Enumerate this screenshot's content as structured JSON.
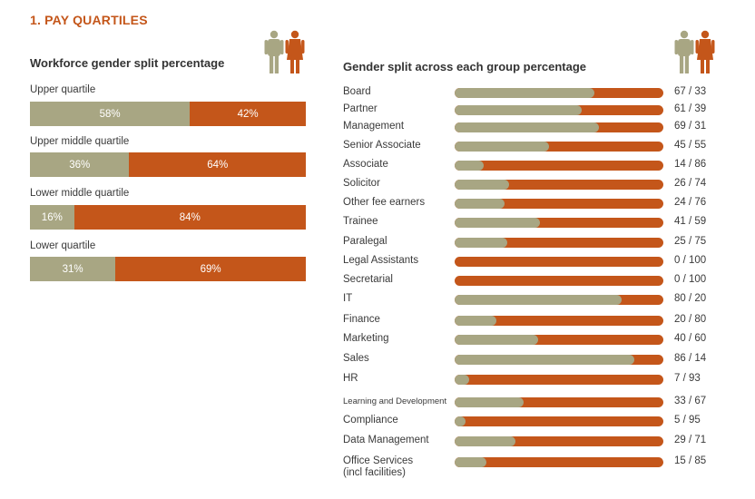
{
  "page_title": "1. PAY QUARTILES",
  "colors": {
    "male": "#a8a683",
    "female": "#c4561a",
    "title": "#c4561a"
  },
  "icons": {
    "left": "man-woman-icon",
    "right": "man-woman-icon"
  },
  "chart_data": [
    {
      "type": "bar",
      "orientation": "horizontal-stacked",
      "title": "Workforce gender split percentage",
      "categories": [
        "Upper quartile",
        "Upper middle quartile",
        "Lower middle quartile",
        "Lower quartile"
      ],
      "series": [
        {
          "values": [
            58,
            36,
            16,
            31
          ],
          "labels": [
            "58%",
            "36%",
            "16%",
            "31%"
          ]
        },
        {
          "values": [
            42,
            64,
            84,
            69
          ],
          "labels": [
            "42%",
            "64%",
            "84%",
            "69%"
          ]
        }
      ]
    },
    {
      "type": "bar",
      "orientation": "horizontal-stacked",
      "title": "Gender split across each group percentage",
      "categories": [
        "Board",
        "Partner",
        "Management",
        "Senior Associate",
        "Associate",
        "Solicitor",
        "Other fee earners",
        "Trainee",
        "Paralegal",
        "Legal Assistants",
        "Secretarial",
        "IT",
        "Finance",
        "Marketing",
        "Sales",
        "HR",
        "Learning and Development",
        "Compliance",
        "Data Management",
        "Office Services\n(incl facilities)"
      ],
      "series": [
        {
          "values": [
            67,
            61,
            69,
            45,
            14,
            26,
            24,
            41,
            25,
            0,
            0,
            80,
            20,
            40,
            86,
            7,
            33,
            5,
            29,
            15
          ]
        },
        {
          "values": [
            33,
            39,
            31,
            55,
            86,
            74,
            76,
            59,
            75,
            100,
            100,
            20,
            80,
            60,
            14,
            93,
            67,
            95,
            71,
            85
          ]
        }
      ],
      "value_labels": [
        "67 / 33",
        "61 / 39",
        "69 / 31",
        "45 / 55",
        "14 / 86",
        "26 / 74",
        "24 / 76",
        "41 / 59",
        "25 / 75",
        "0 / 100",
        "0 / 100",
        "80 / 20",
        "20 / 80",
        "40 / 60",
        "86 / 14",
        "7 / 93",
        "33 / 67",
        "5 / 95",
        "29 / 71",
        "15 / 85"
      ]
    }
  ]
}
